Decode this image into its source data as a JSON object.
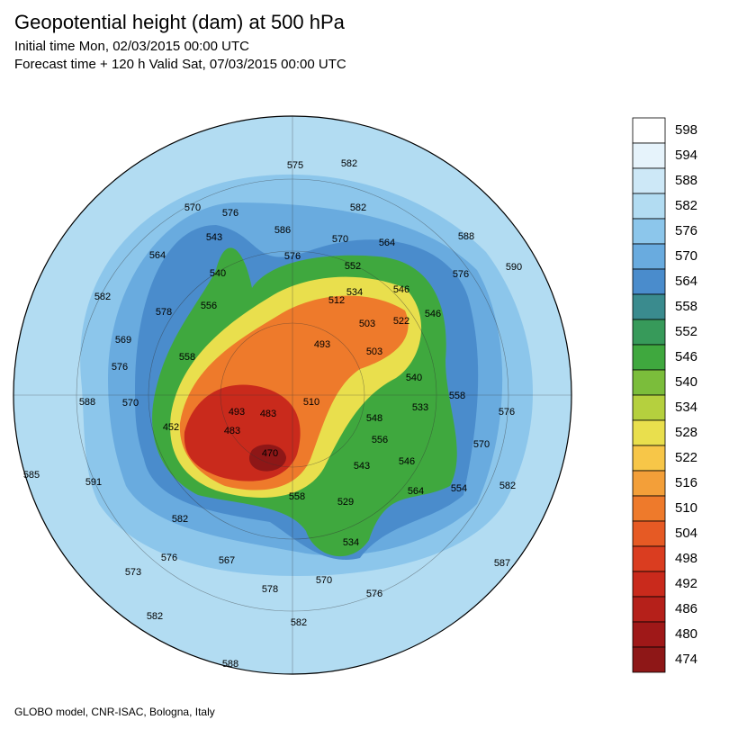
{
  "header": {
    "title": "Geopotential height (dam) at 500 hPa",
    "initial": "Initial time Mon, 02/03/2015 00:00 UTC",
    "forecast": "Forecast time + 120 h Valid Sat, 07/03/2015 00:00 UTC"
  },
  "map": {
    "contour_labels": [
      "575",
      "582",
      "570",
      "576",
      "582",
      "586",
      "588",
      "543",
      "570",
      "564",
      "564",
      "576",
      "552",
      "590",
      "540",
      "576",
      "534",
      "546",
      "512",
      "582",
      "578",
      "556",
      "503",
      "522",
      "546",
      "569",
      "493",
      "503",
      "558",
      "576",
      "540",
      "558",
      "510",
      "533",
      "576",
      "588",
      "570",
      "493",
      "483",
      "548",
      "452",
      "483",
      "556",
      "570",
      "470",
      "546",
      "543",
      "585",
      "591",
      "564",
      "554",
      "582",
      "558",
      "529",
      "582",
      "576",
      "567",
      "573",
      "587",
      "570",
      "578",
      "576",
      "582",
      "582",
      "588",
      "534"
    ]
  },
  "colorbar": {
    "levels": [
      598,
      594,
      588,
      582,
      576,
      570,
      564,
      558,
      552,
      546,
      540,
      534,
      528,
      522,
      516,
      510,
      504,
      498,
      492,
      486,
      480,
      474
    ],
    "colors": [
      "#ffffff",
      "#e6f3fb",
      "#cde8f7",
      "#b2dcf2",
      "#8cc6eb",
      "#69abdf",
      "#4a8ccc",
      "#3a8b8e",
      "#379a5a",
      "#3fa83e",
      "#7bbd3b",
      "#b5d03e",
      "#e9df4d",
      "#f7c648",
      "#f39f39",
      "#ee7a2b",
      "#e65a24",
      "#da3d20",
      "#c92a1c",
      "#b5201a",
      "#9f1818",
      "#8e1717"
    ]
  },
  "footer": "GLOBO model, CNR-ISAC, Bologna, Italy"
}
